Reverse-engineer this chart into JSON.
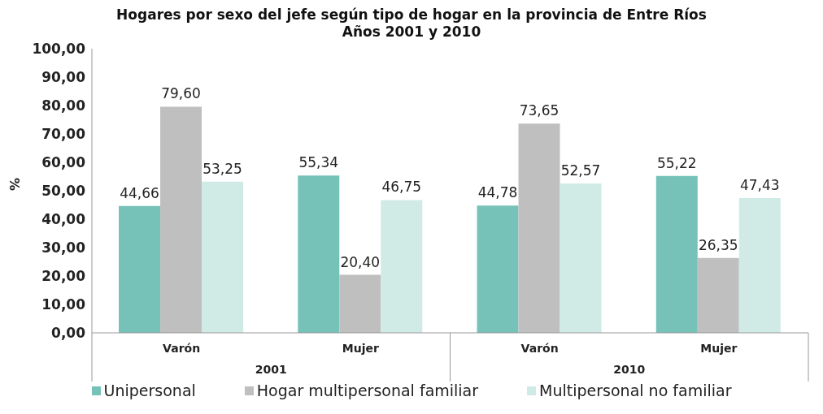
{
  "chart_data": {
    "type": "bar",
    "title": "Hogares por sexo del jefe según tipo de hogar en la provincia de Entre Ríos\nAños 2001 y 2010",
    "ylabel": "%",
    "categories": [
      "Varón",
      "Mujer",
      "Varón",
      "Mujer"
    ],
    "annotations": [
      "2001",
      "2010"
    ],
    "series": [
      {
        "name": "Unipersonal",
        "color": "#76c2b8",
        "values": [
          44.66,
          55.34,
          44.78,
          55.22
        ],
        "value_labels": [
          "44,66",
          "55,34",
          "44,78",
          "55,22"
        ]
      },
      {
        "name": "Hogar multipersonal familiar",
        "color": "#bfbfbf",
        "values": [
          79.6,
          20.4,
          73.65,
          26.35
        ],
        "value_labels": [
          "79,60",
          "20,40",
          "73,65",
          "26,35"
        ]
      },
      {
        "name": "Multipersonal no familiar",
        "color": "#d0ebe6",
        "values": [
          53.25,
          46.75,
          52.57,
          47.43
        ],
        "value_labels": [
          "53,25",
          "46,75",
          "52,57",
          "47,43"
        ]
      }
    ],
    "ylim": [
      0,
      100
    ],
    "yticks": [
      {
        "value": 0,
        "label": "0,00"
      },
      {
        "value": 10,
        "label": "10,00"
      },
      {
        "value": 20,
        "label": "20,00"
      },
      {
        "value": 30,
        "label": "30,00"
      },
      {
        "value": 40,
        "label": "40,00"
      },
      {
        "value": 50,
        "label": "50,00"
      },
      {
        "value": 60,
        "label": "60,00"
      },
      {
        "value": 70,
        "label": "70,00"
      },
      {
        "value": 80,
        "label": "80,00"
      },
      {
        "value": 90,
        "label": "90,00"
      },
      {
        "value": 100,
        "label": "100,00"
      }
    ],
    "grid": false,
    "legend": "bottom"
  }
}
